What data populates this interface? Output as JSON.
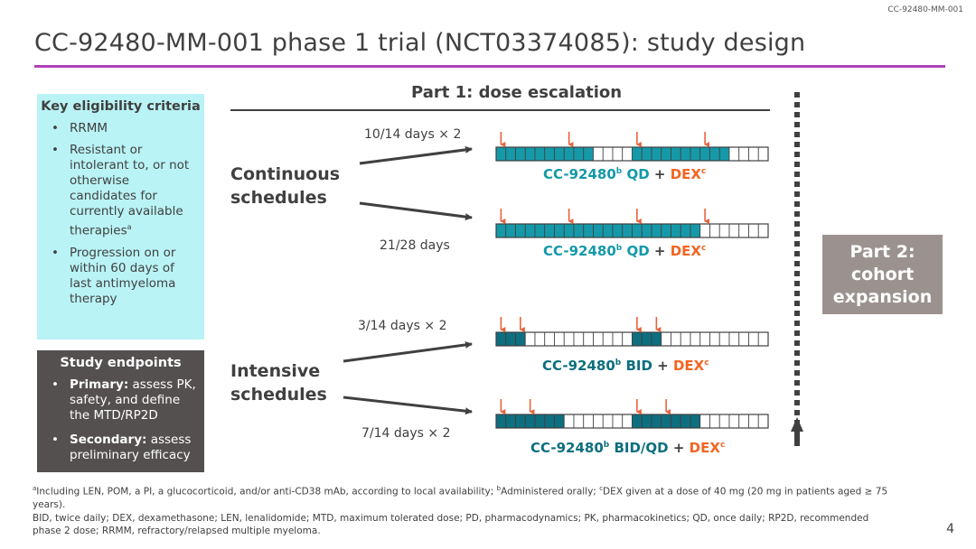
{
  "header": {
    "slide_id": "CC-92480-MM-001",
    "title": "CC-92480-MM-001 phase 1 trial (NCT03374085): study design"
  },
  "eligibility": {
    "heading": "Key eligibility criteria",
    "items": [
      "RRMM",
      "Resistant or intolerant to, or not otherwise candidates for currently available therapies",
      "Progression on or within 60 days of last antimyeloma therapy"
    ],
    "item2_superscript": "a"
  },
  "endpoints": {
    "heading": "Study endpoints",
    "primary_label": "Primary:",
    "primary_text": " assess PK, safety, and define the MTD/RP2D",
    "secondary_label": "Secondary:",
    "secondary_text": " assess preliminary efficacy"
  },
  "part1": {
    "title": "Part 1: dose escalation",
    "continuous_label": "Continuous schedules",
    "intensive_label": "Intensive schedules",
    "schedules": [
      {
        "label": "10/14 days × 2",
        "drug": "CC-92480",
        "drug_sup": "b",
        "regimen": "QD",
        "dex": "DEX",
        "dex_sup": "c",
        "active_days": 10,
        "cycle_days": 14,
        "repeats": 2
      },
      {
        "label": "21/28 days",
        "drug": "CC-92480",
        "drug_sup": "b",
        "regimen": "QD",
        "dex": "DEX",
        "dex_sup": "c",
        "active_days": 21,
        "cycle_days": 28,
        "repeats": 1
      },
      {
        "label": "3/14 days × 2",
        "drug": "CC-92480",
        "drug_sup": "b",
        "regimen": "BID",
        "dex": "DEX",
        "dex_sup": "c",
        "active_days": 3,
        "cycle_days": 14,
        "repeats": 2
      },
      {
        "label": "7/14 days × 2",
        "drug": "CC-92480",
        "drug_sup": "b",
        "regimen": "BID/QD",
        "dex": "DEX",
        "dex_sup": "c",
        "active_days": 7,
        "cycle_days": 14,
        "repeats": 2
      }
    ],
    "plus": "+"
  },
  "part2": {
    "line1": "Part 2:",
    "line2": "cohort",
    "line3": "expansion"
  },
  "footnotes": {
    "line1": "Including LEN, POM, a PI, a glucocorticoid, and/or anti-CD38 mAb, according to local availability; ",
    "line1_sup_a": "a",
    "line1_sup_b": "b",
    "line1_b_text": "Administered orally; ",
    "line1_sup_c": "c",
    "line1_c_text": "DEX given at a dose of 40 mg (20 mg in patients aged ≥ 75 years).",
    "abbreviations": "BID, twice daily; DEX, dexamethasone; LEN, lenalidomide; MTD, maximum tolerated dose; PD, pharmacodynamics; PK, pharmacokinetics; QD, once daily; RP2D, recommended phase 2 dose; RRMM, refractory/relapsed multiple myeloma."
  },
  "page_number": "4",
  "colors": {
    "title_rule": "#b040b8",
    "eligibility_bg": "#b9f3f5",
    "endpoints_bg": "#545050",
    "continuous_fill": "#1599a8",
    "intensive_fill": "#0d6f7f",
    "dex_arrow": "#e8633a",
    "part2_bg": "#9b928f"
  }
}
